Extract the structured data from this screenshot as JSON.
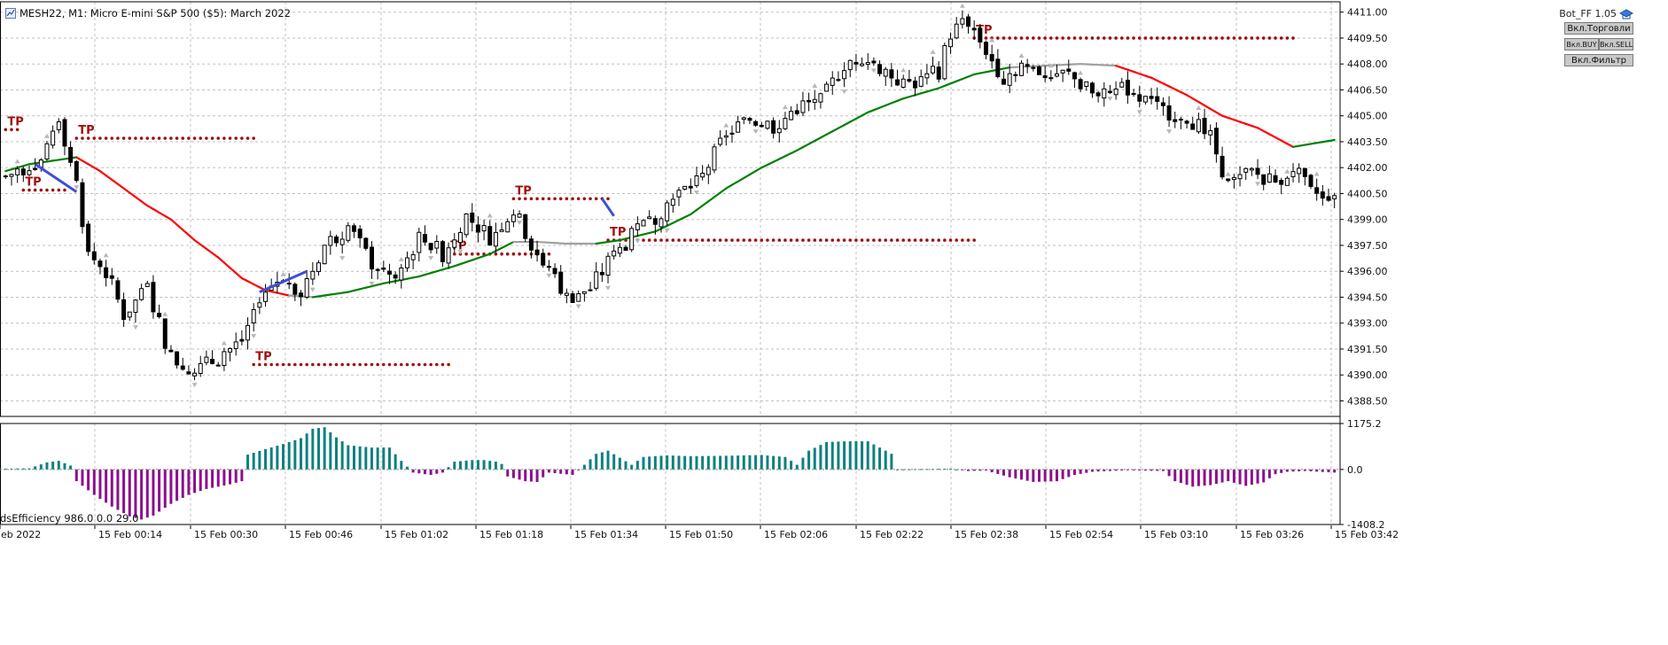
{
  "header": {
    "symbol_line": "MESH22, M1:  Micro E-mini S&P 500 ($5): March 2022"
  },
  "expert": {
    "name": "Bot_FF 1.05",
    "buttons": [
      "Вкл.Торговли",
      "Вкл.BUY",
      "Вкл.SELL",
      "Вкл.Фильтр"
    ]
  },
  "indicator": {
    "title": "dsEfficiency 986.0 0.0 29.0"
  },
  "colors": {
    "background": "#ffffff",
    "grid": "#c0c0c0",
    "candle": "#000000",
    "ma_up": "#008000",
    "ma_down": "#ff0000",
    "ma_flat": "#a0a0a0",
    "tp": "#a01010",
    "hist_pos": "#108080",
    "hist_neg": "#8b108b",
    "trade_line": "#3c4fd6"
  },
  "chart_data": [
    {
      "type": "candlestick",
      "symbol": "MESH22",
      "timeframe": "M1",
      "y_tick_labels": [
        "4411.00",
        "4409.50",
        "4408.00",
        "4406.50",
        "4405.00",
        "4403.50",
        "4402.00",
        "4400.50",
        "4399.00",
        "4397.50",
        "4396.00",
        "4394.50",
        "4393.00",
        "4391.50",
        "4390.00",
        "4388.50"
      ],
      "ylim": [
        4387.6,
        4411.6
      ],
      "x_tick_labels": [
        "eb 2022",
        "15 Feb 00:14",
        "15 Feb 00:30",
        "15 Feb 00:46",
        "15 Feb 01:02",
        "15 Feb 01:18",
        "15 Feb 01:34",
        "15 Feb 01:50",
        "15 Feb 02:06",
        "15 Feb 02:22",
        "15 Feb 02:38",
        "15 Feb 02:54",
        "15 Feb 03:10",
        "15 Feb 03:26",
        "15 Feb 03:42"
      ],
      "bars": 226,
      "close_keypoints": [
        [
          0,
          4401.5
        ],
        [
          6,
          4402.5
        ],
        [
          9,
          4405.0
        ],
        [
          12,
          4401.0
        ],
        [
          14,
          4397.0
        ],
        [
          17,
          4396.0
        ],
        [
          20,
          4393.5
        ],
        [
          24,
          4395.0
        ],
        [
          28,
          4391.0
        ],
        [
          32,
          4390.2
        ],
        [
          36,
          4391.0
        ],
        [
          40,
          4392.0
        ],
        [
          43,
          4394.6
        ],
        [
          47,
          4395.8
        ],
        [
          50,
          4394.8
        ],
        [
          54,
          4397.5
        ],
        [
          58,
          4398.6
        ],
        [
          62,
          4396.5
        ],
        [
          66,
          4395.5
        ],
        [
          70,
          4398.0
        ],
        [
          74,
          4397.0
        ],
        [
          78,
          4399.2
        ],
        [
          82,
          4398.0
        ],
        [
          86,
          4399.5
        ],
        [
          90,
          4397.0
        ],
        [
          95,
          4394.5
        ],
        [
          99,
          4395.0
        ],
        [
          102,
          4396.5
        ],
        [
          106,
          4398.0
        ],
        [
          110,
          4399.2
        ],
        [
          114,
          4400.5
        ],
        [
          118,
          4401.5
        ],
        [
          122,
          4404.0
        ],
        [
          126,
          4404.8
        ],
        [
          130,
          4404.4
        ],
        [
          134,
          4405.5
        ],
        [
          138,
          4405.8
        ],
        [
          142,
          4408.0
        ],
        [
          145,
          4408.5
        ],
        [
          149,
          4407.6
        ],
        [
          152,
          4406.8
        ],
        [
          155,
          4407.0
        ],
        [
          158,
          4407.6
        ],
        [
          160,
          4409.8
        ],
        [
          163,
          4410.5
        ],
        [
          166,
          4408.8
        ],
        [
          169,
          4407.2
        ],
        [
          172,
          4408.0
        ],
        [
          176,
          4407.5
        ],
        [
          180,
          4407.4
        ],
        [
          185,
          4406.0
        ],
        [
          190,
          4406.6
        ],
        [
          195,
          4405.4
        ],
        [
          200,
          4405.0
        ],
        [
          204,
          4403.8
        ],
        [
          207,
          4401.0
        ],
        [
          211,
          4401.7
        ],
        [
          215,
          4401.2
        ],
        [
          218,
          4402.0
        ],
        [
          221,
          4400.5
        ],
        [
          225,
          4400.5
        ]
      ],
      "ma_keypoints": [
        [
          0,
          4401.8
        ],
        [
          4,
          4402.2
        ],
        [
          8,
          4402.4
        ],
        [
          12,
          4402.6
        ],
        [
          16,
          4401.8
        ],
        [
          20,
          4400.8
        ],
        [
          24,
          4399.8
        ],
        [
          28,
          4399.0
        ],
        [
          32,
          4397.8
        ],
        [
          36,
          4396.8
        ],
        [
          40,
          4395.6
        ],
        [
          44,
          4394.9
        ],
        [
          48,
          4394.6
        ],
        [
          52,
          4394.5
        ],
        [
          58,
          4394.8
        ],
        [
          64,
          4395.3
        ],
        [
          70,
          4395.7
        ],
        [
          76,
          4396.3
        ],
        [
          82,
          4397.0
        ],
        [
          86,
          4397.7
        ],
        [
          90,
          4397.7
        ],
        [
          95,
          4397.6
        ],
        [
          100,
          4397.6
        ],
        [
          104,
          4397.8
        ],
        [
          110,
          4398.3
        ],
        [
          116,
          4399.3
        ],
        [
          122,
          4400.8
        ],
        [
          128,
          4402.0
        ],
        [
          134,
          4403.0
        ],
        [
          140,
          4404.1
        ],
        [
          146,
          4405.2
        ],
        [
          152,
          4406.0
        ],
        [
          158,
          4406.6
        ],
        [
          164,
          4407.4
        ],
        [
          170,
          4407.8
        ],
        [
          176,
          4407.9
        ],
        [
          182,
          4408.0
        ],
        [
          188,
          4407.9
        ],
        [
          194,
          4407.2
        ],
        [
          200,
          4406.2
        ],
        [
          206,
          4405.0
        ],
        [
          212,
          4404.3
        ],
        [
          218,
          4403.2
        ],
        [
          225,
          4403.6
        ]
      ],
      "take_profit_levels": [
        {
          "label": "TP",
          "price": 4404.2,
          "from_bar": 0,
          "to_bar": 2
        },
        {
          "label": "TP",
          "price": 4403.7,
          "from_bar": 12,
          "to_bar": 42
        },
        {
          "label": "TP",
          "price": 4400.7,
          "from_bar": 3,
          "to_bar": 10
        },
        {
          "label": "TP",
          "price": 4390.6,
          "from_bar": 42,
          "to_bar": 75
        },
        {
          "label": "TP",
          "price": 4400.2,
          "from_bar": 86,
          "to_bar": 102
        },
        {
          "label": "TP",
          "price": 4397.0,
          "from_bar": 75,
          "to_bar": 92
        },
        {
          "label": "TP",
          "price": 4397.8,
          "from_bar": 102,
          "to_bar": 164
        },
        {
          "label": "TP",
          "price": 4409.5,
          "from_bar": 164,
          "to_bar": 218
        }
      ],
      "trade_lines": [
        {
          "from": [
            5,
            4402.2
          ],
          "to": [
            12,
            4400.6
          ]
        },
        {
          "from": [
            43,
            4394.8
          ],
          "to": [
            51,
            4396.0
          ]
        },
        {
          "from": [
            101,
            4400.2
          ],
          "to": [
            103,
            4399.2
          ]
        }
      ]
    },
    {
      "type": "bar",
      "title": "dsEfficiency 986.0 0.0 29.0",
      "y_tick_labels": [
        "1175.2",
        "0.0",
        "-1408.2"
      ],
      "ylim": [
        -1408.2,
        1175.2
      ],
      "value_keypoints": [
        [
          0,
          20
        ],
        [
          4,
          30
        ],
        [
          7,
          180
        ],
        [
          9,
          220
        ],
        [
          11,
          100
        ],
        [
          12,
          -300
        ],
        [
          15,
          -650
        ],
        [
          18,
          -950
        ],
        [
          21,
          -1200
        ],
        [
          23,
          -1280
        ],
        [
          25,
          -1180
        ],
        [
          28,
          -880
        ],
        [
          31,
          -650
        ],
        [
          34,
          -500
        ],
        [
          38,
          -380
        ],
        [
          40,
          -300
        ],
        [
          41,
          380
        ],
        [
          44,
          520
        ],
        [
          47,
          650
        ],
        [
          50,
          800
        ],
        [
          52,
          1040
        ],
        [
          54,
          1080
        ],
        [
          56,
          820
        ],
        [
          58,
          620
        ],
        [
          62,
          560
        ],
        [
          65,
          560
        ],
        [
          67,
          220
        ],
        [
          69,
          -80
        ],
        [
          72,
          -140
        ],
        [
          74,
          -80
        ],
        [
          76,
          200
        ],
        [
          79,
          240
        ],
        [
          81,
          240
        ],
        [
          83,
          200
        ],
        [
          84,
          140
        ],
        [
          85,
          -180
        ],
        [
          88,
          -300
        ],
        [
          90,
          -320
        ],
        [
          92,
          -80
        ],
        [
          96,
          -140
        ],
        [
          98,
          120
        ],
        [
          100,
          400
        ],
        [
          102,
          480
        ],
        [
          104,
          300
        ],
        [
          106,
          120
        ],
        [
          108,
          320
        ],
        [
          112,
          360
        ],
        [
          116,
          340
        ],
        [
          122,
          350
        ],
        [
          128,
          370
        ],
        [
          132,
          320
        ],
        [
          134,
          120
        ],
        [
          136,
          480
        ],
        [
          139,
          700
        ],
        [
          142,
          720
        ],
        [
          146,
          720
        ],
        [
          148,
          560
        ],
        [
          150,
          400
        ],
        [
          151,
          0
        ],
        [
          160,
          20
        ],
        [
          163,
          -40
        ],
        [
          166,
          -30
        ],
        [
          170,
          -200
        ],
        [
          174,
          -320
        ],
        [
          178,
          -300
        ],
        [
          181,
          -140
        ],
        [
          184,
          -60
        ],
        [
          190,
          -20
        ],
        [
          196,
          -40
        ],
        [
          198,
          -300
        ],
        [
          201,
          -440
        ],
        [
          204,
          -400
        ],
        [
          207,
          -300
        ],
        [
          210,
          -420
        ],
        [
          213,
          -330
        ],
        [
          215,
          -120
        ],
        [
          217,
          -60
        ],
        [
          220,
          -40
        ],
        [
          225,
          -80
        ]
      ]
    }
  ]
}
